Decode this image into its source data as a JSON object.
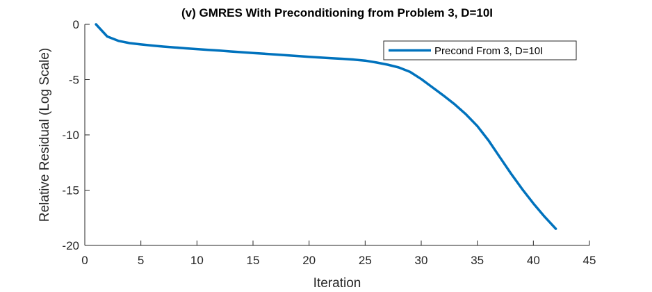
{
  "chart_data": {
    "type": "line",
    "title": "(v) GMRES With Preconditioning from Problem 3, D=10I",
    "xlabel": "Iteration",
    "ylabel": "Relative Residual (Log Scale)",
    "xlim": [
      0,
      45
    ],
    "ylim": [
      -20,
      0
    ],
    "xticks": [
      0,
      5,
      10,
      15,
      20,
      25,
      30,
      35,
      40,
      45
    ],
    "yticks": [
      0,
      -5,
      -10,
      -15,
      -20
    ],
    "grid": false,
    "legend_position": "top-right",
    "series": [
      {
        "name": "Precond From 3, D=10I",
        "color": "#0072BD",
        "x": [
          1,
          2,
          3,
          4,
          5,
          6,
          7,
          8,
          9,
          10,
          11,
          12,
          13,
          14,
          15,
          16,
          17,
          18,
          19,
          20,
          21,
          22,
          23,
          24,
          25,
          26,
          27,
          28,
          29,
          30,
          31,
          32,
          33,
          34,
          35,
          36,
          37,
          38,
          39,
          40,
          41,
          42
        ],
        "y": [
          0,
          -1.1,
          -1.5,
          -1.7,
          -1.82,
          -1.92,
          -2.01,
          -2.09,
          -2.17,
          -2.24,
          -2.31,
          -2.38,
          -2.45,
          -2.52,
          -2.59,
          -2.66,
          -2.73,
          -2.8,
          -2.87,
          -2.94,
          -3.0,
          -3.06,
          -3.12,
          -3.19,
          -3.28,
          -3.45,
          -3.65,
          -3.9,
          -4.3,
          -4.95,
          -5.7,
          -6.45,
          -7.25,
          -8.15,
          -9.2,
          -10.5,
          -12.0,
          -13.5,
          -14.9,
          -16.2,
          -17.4,
          -18.5
        ]
      }
    ]
  }
}
